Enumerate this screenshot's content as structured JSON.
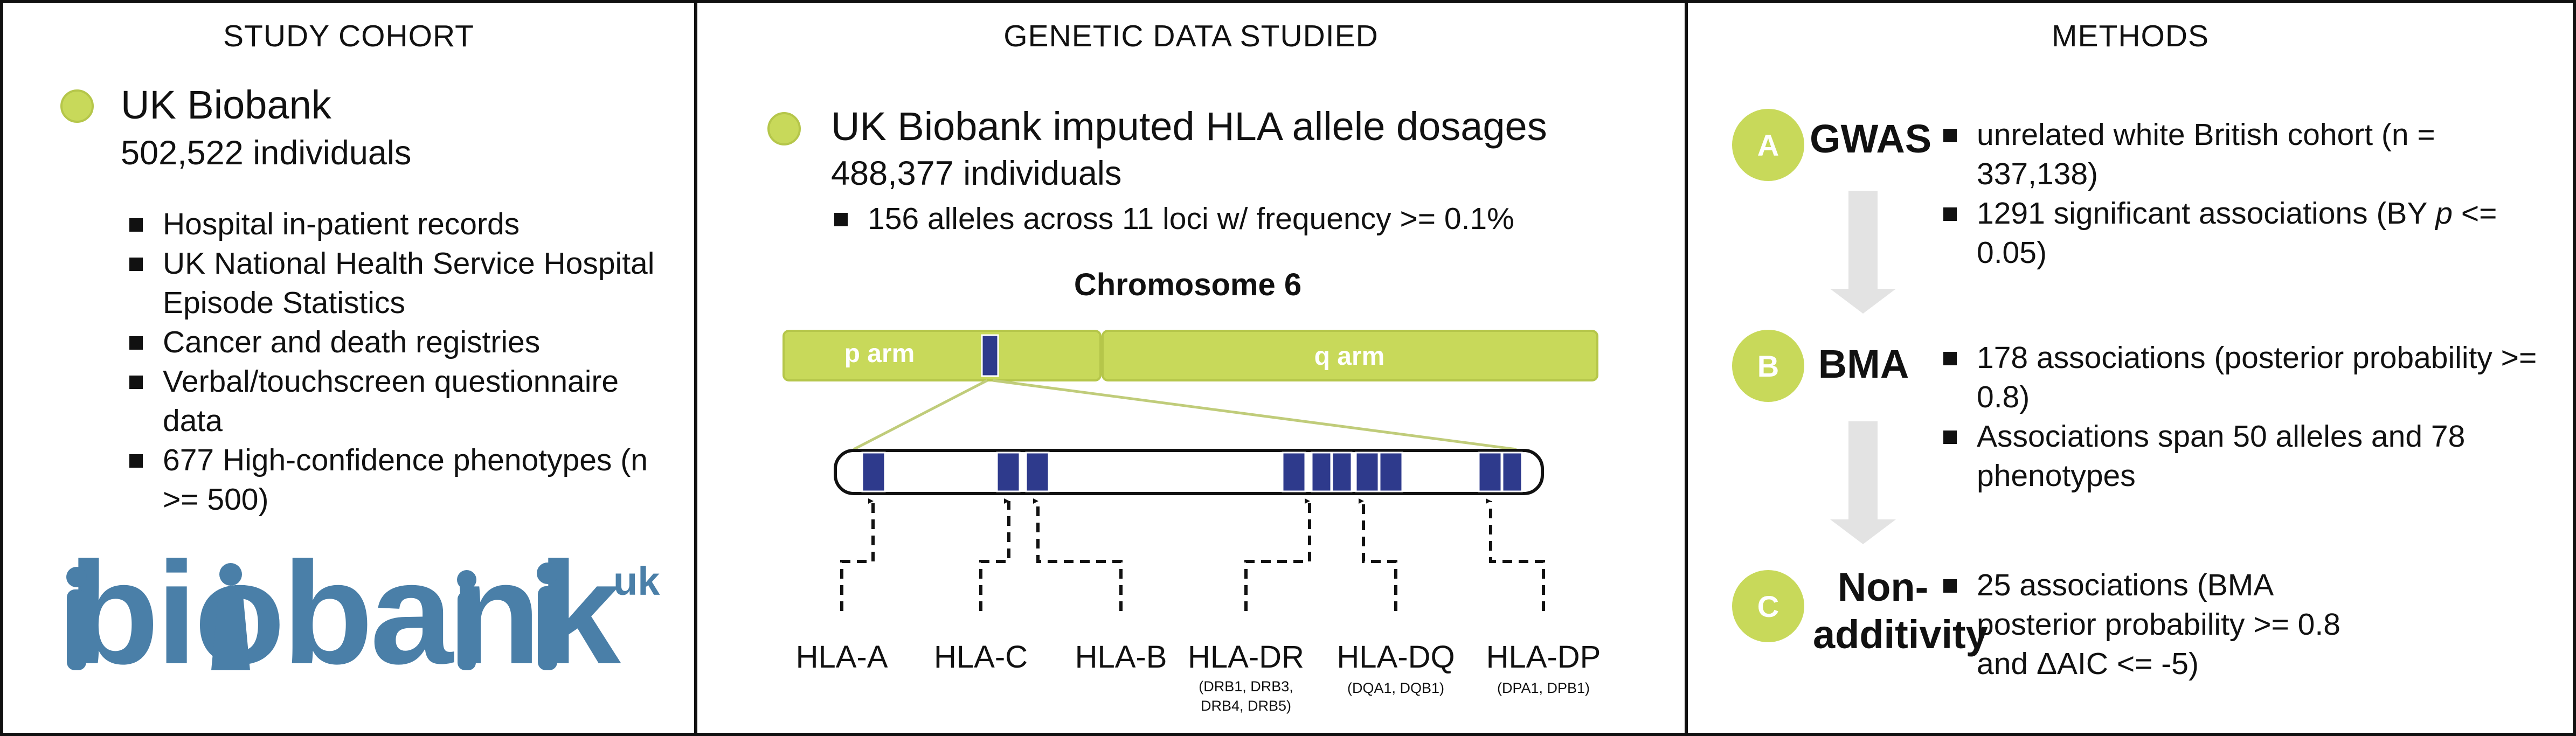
{
  "cohort": {
    "title": "STUDY COHORT",
    "name": "UK Biobank",
    "count": "502,522 individuals",
    "items": [
      "Hospital in-patient records",
      "UK National Health Service Hospital Episode Statistics",
      "Cancer and death registries",
      "Verbal/touchscreen questionnaire data",
      "677 High-confidence phenotypes (n >= 500)"
    ],
    "logo": {
      "word": "biobank",
      "superscript": "uk"
    }
  },
  "genetic": {
    "title": "GENETIC DATA STUDIED",
    "name": "UK Biobank imputed HLA allele dosages",
    "count": "488,377 individuals",
    "item": "156 alleles across 11 loci w/ frequency >= 0.1%",
    "chromosome": {
      "title": "Chromosome 6",
      "p_arm": "p arm",
      "q_arm": "q arm",
      "loci": [
        {
          "label": "HLA-A",
          "sub": ""
        },
        {
          "label": "HLA-C",
          "sub": ""
        },
        {
          "label": "HLA-B",
          "sub": ""
        },
        {
          "label": "HLA-DR",
          "sub": "(DRB1, DRB3, DRB4, DRB5)"
        },
        {
          "label": "HLA-DQ",
          "sub": "(DQA1, DQB1)"
        },
        {
          "label": "HLA-DP",
          "sub": "(DPA1, DPB1)"
        }
      ]
    }
  },
  "methods": {
    "title": "METHODS",
    "steps": [
      {
        "letter": "A",
        "name": "GWAS",
        "items": [
          "unrelated white British cohort (n = 337,138)"
        ],
        "item2_prefix": "1291 significant associations (BY ",
        "item2_italic": "p",
        "item2_suffix": " <= 0.05)"
      },
      {
        "letter": "B",
        "name": "BMA",
        "items": [
          "178 associations (posterior probability >= 0.8)",
          "Associations span 50 alleles and 78 phenotypes"
        ]
      },
      {
        "letter": "C",
        "name": "Non-additivity",
        "items": [
          "25 associations (BMA posterior probability >= 0.8 and ΔAIC <= -5)"
        ]
      }
    ]
  },
  "colors": {
    "accent": "#c8d95a",
    "band": "#2e3a8c",
    "logo": "#4a7fa8",
    "arrow": "#e3e3e3"
  }
}
